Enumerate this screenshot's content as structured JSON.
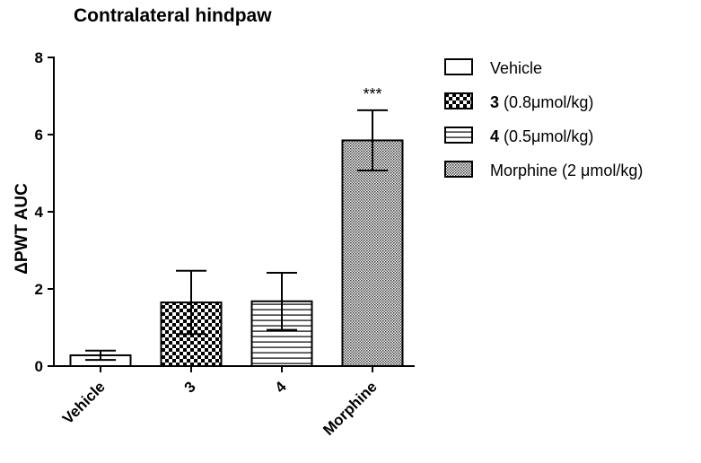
{
  "chart_data": {
    "type": "bar",
    "title": "Contralateral hindpaw",
    "ylabel": "ΔPWT AUC",
    "xlabel": "",
    "ylim": [
      0,
      8
    ],
    "yticks": [
      "0",
      "2",
      "4",
      "6",
      "8"
    ],
    "categories": [
      "Vehicle",
      "3",
      "4",
      "Morphine"
    ],
    "values": [
      0.28,
      1.65,
      1.68,
      5.85
    ],
    "errors": [
      0.12,
      0.82,
      0.74,
      0.78
    ],
    "patterns": [
      "blank",
      "checker",
      "hstripe",
      "dense-dots"
    ],
    "annotations": [
      {
        "category": "Morphine",
        "text": "***"
      }
    ],
    "legend": {
      "placement": "right",
      "entries": [
        {
          "bold": "",
          "text": "Vehicle",
          "pattern": "blank"
        },
        {
          "bold": "3",
          "text": " (0.8μmol/kg)",
          "pattern": "checker"
        },
        {
          "bold": "4",
          "text": " (0.5μmol/kg)",
          "pattern": "hstripe"
        },
        {
          "bold": "",
          "text": "Morphine (2 μmol/kg)",
          "pattern": "dense-dots"
        }
      ]
    }
  }
}
